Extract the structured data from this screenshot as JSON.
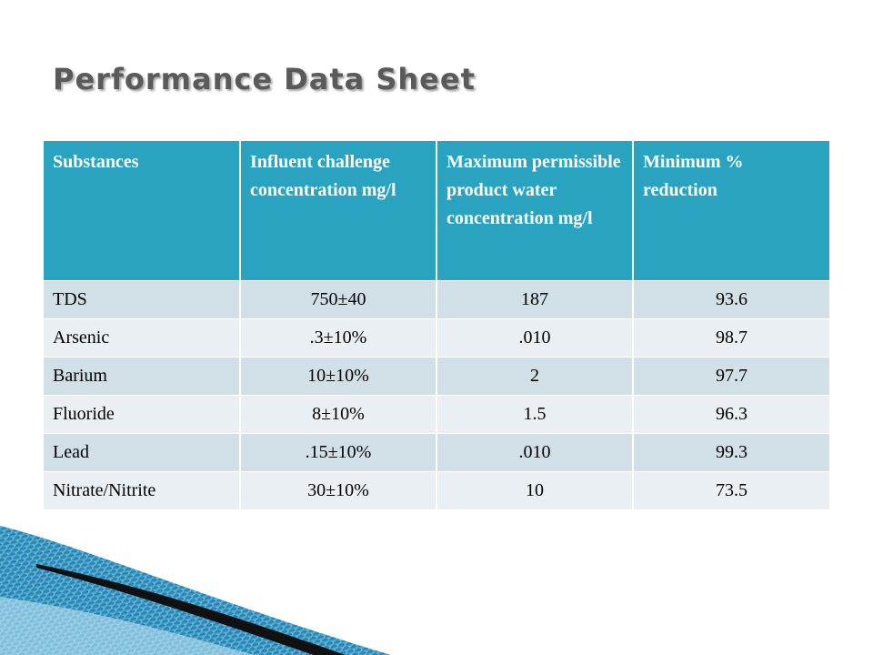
{
  "slide": {
    "title": "Performance Data Sheet"
  },
  "table": {
    "headers": [
      "Substances",
      "Influent challenge concentration mg/l",
      "Maximum permissible product water concentration mg/l",
      "Minimum % reduction"
    ],
    "rows": [
      [
        "TDS",
        "750±40",
        "187",
        "93.6"
      ],
      [
        "Arsenic",
        ".3±10%",
        ".010",
        "98.7"
      ],
      [
        "Barium",
        "10±10%",
        "2",
        "97.7"
      ],
      [
        "Fluoride",
        "8±10%",
        "1.5",
        "96.3"
      ],
      [
        "Lead",
        ".15±10%",
        ".010",
        "99.3"
      ],
      [
        "Nitrate/Nitrite",
        "30±10%",
        "10",
        "73.5"
      ]
    ]
  },
  "colors": {
    "header_bg": "#2aa3c1",
    "row_band_dark": "#d1dfe6",
    "row_band_light": "#e9eff3",
    "title_text": "#5a5a5a",
    "decor_blue": "#1e7fb0"
  }
}
